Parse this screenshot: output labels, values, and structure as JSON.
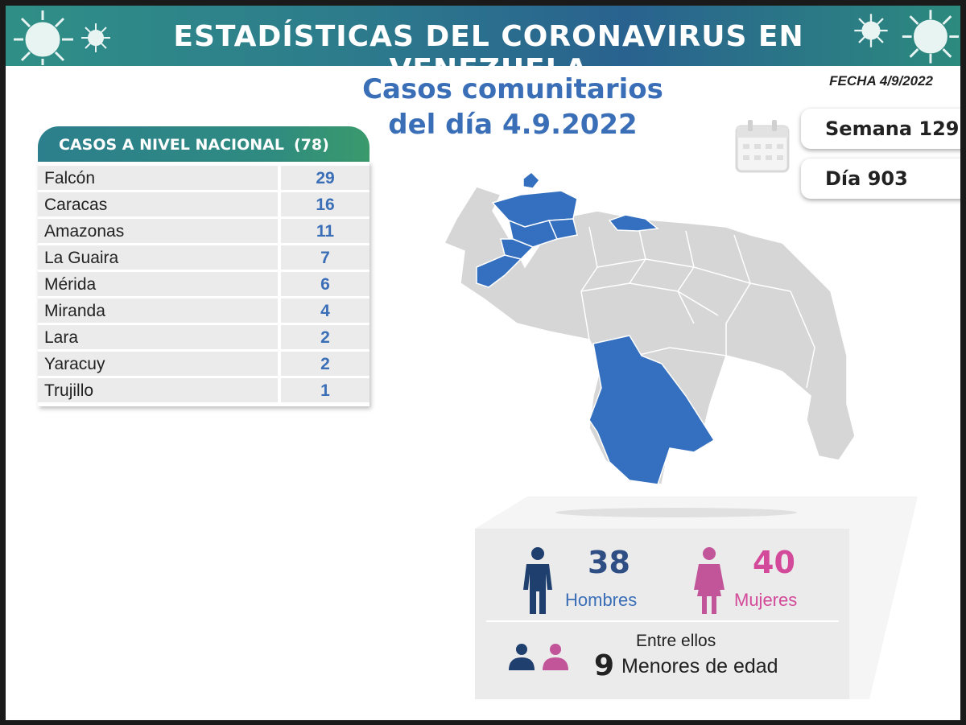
{
  "header": {
    "title": "ESTADÍSTICAS DEL CORONAVIRUS EN VENEZUELA"
  },
  "main_title": {
    "line1": "Casos comunitarios",
    "line2": "del día 4.9.2022"
  },
  "date": "FECHA 4/9/2022",
  "week": "Semana 129",
  "day": "Día 903",
  "table": {
    "header": "CASOS A NIVEL NACIONAL",
    "total": "(78)",
    "rows": [
      {
        "state": "Falcón",
        "cases": "29"
      },
      {
        "state": "Caracas",
        "cases": "16"
      },
      {
        "state": "Amazonas",
        "cases": "11"
      },
      {
        "state": "La Guaira",
        "cases": "7"
      },
      {
        "state": "Mérida",
        "cases": "6"
      },
      {
        "state": "Miranda",
        "cases": "4"
      },
      {
        "state": "Lara",
        "cases": "2"
      },
      {
        "state": "Yaracuy",
        "cases": "2"
      },
      {
        "state": "Trujillo",
        "cases": "1"
      }
    ]
  },
  "gender": {
    "men_count": "38",
    "men_label": "Hombres",
    "women_count": "40",
    "women_label": "Mujeres",
    "among_label": "Entre ellos",
    "minors_count": "9",
    "minors_label": "Menores de edad"
  },
  "colors": {
    "highlight_state": "#3470bf",
    "other_state": "#d6d6d6",
    "men": "#1f3f6e",
    "women": "#c2559a",
    "banner": "#2d7c8c"
  },
  "icons": [
    "virus-icon",
    "calendar-icon",
    "man-icon",
    "woman-icon",
    "people-icon"
  ]
}
